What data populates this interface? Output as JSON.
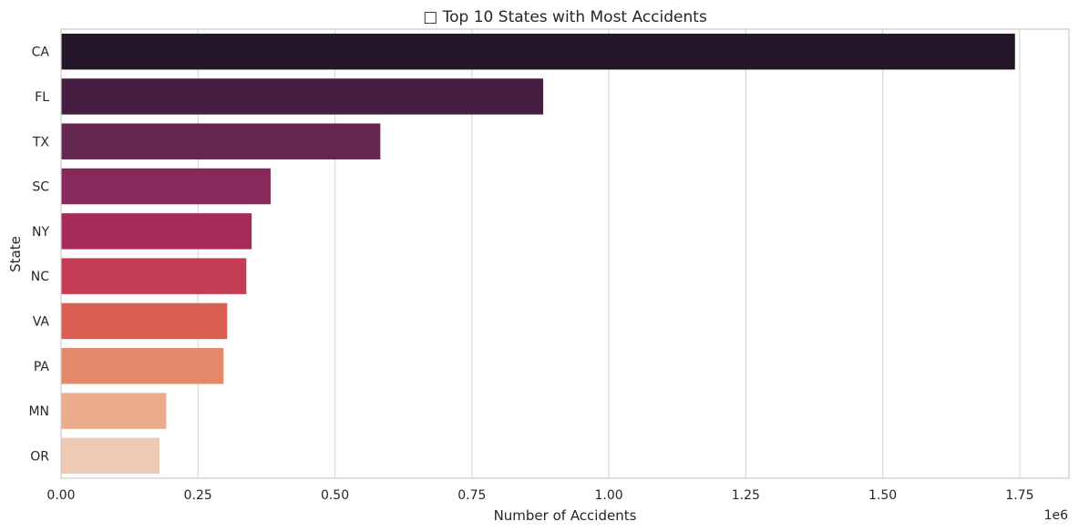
{
  "chart_data": {
    "type": "bar",
    "orientation": "horizontal",
    "title": "□ Top 10 States with Most Accidents",
    "xlabel": "Number of Accidents",
    "ylabel": "State",
    "x_scale_label": "1e6",
    "xlim": [
      0,
      1.84
    ],
    "x_ticks": [
      "0.00",
      "0.25",
      "0.50",
      "0.75",
      "1.00",
      "1.25",
      "1.50",
      "1.75"
    ],
    "x_tick_values": [
      0,
      0.25,
      0.5,
      0.75,
      1.0,
      1.25,
      1.5,
      1.75
    ],
    "categories": [
      "CA",
      "FL",
      "TX",
      "SC",
      "NY",
      "NC",
      "VA",
      "PA",
      "MN",
      "OR"
    ],
    "values": [
      1741433,
      880192,
      582837,
      382557,
      347960,
      338199,
      303301,
      296620,
      192084,
      179660
    ],
    "colors": [
      "#231729",
      "#451e41",
      "#65264f",
      "#872a5b",
      "#a62a5a",
      "#c53d55",
      "#d95f51",
      "#e38869",
      "#eaac8a",
      "#eec9b4"
    ],
    "grid": "vertical",
    "legend": "none"
  }
}
